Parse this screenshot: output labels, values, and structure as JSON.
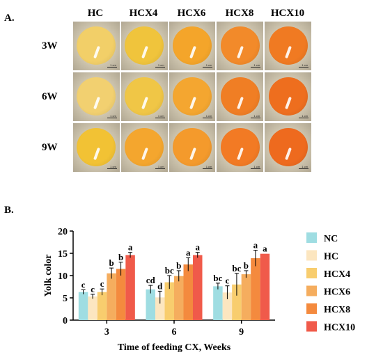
{
  "panel_a": {
    "label": "A.",
    "columns": [
      "HC",
      "HCX4",
      "HCX6",
      "HCX8",
      "HCX10"
    ],
    "rows": [
      {
        "label": "3W",
        "yolk_colors": [
          "#f2cf68",
          "#f0c43c",
          "#f4a52a",
          "#f28a2a",
          "#f07a22"
        ]
      },
      {
        "label": "6W",
        "yolk_colors": [
          "#f2d070",
          "#f0c646",
          "#f4a630",
          "#f07e24",
          "#ee6e1e"
        ]
      },
      {
        "label": "9W",
        "yolk_colors": [
          "#f2c234",
          "#f4a62e",
          "#f49a2c",
          "#f27a24",
          "#ee6a1e"
        ]
      }
    ],
    "scale_label": "1 cm"
  },
  "panel_b": {
    "label": "B."
  },
  "chart_data": {
    "type": "bar",
    "title": "",
    "xlabel": "Time of feeding CX, Weeks",
    "ylabel": "Yolk color",
    "ylim": [
      0,
      20
    ],
    "yticks": [
      0,
      5,
      10,
      15,
      20
    ],
    "categories": [
      "3",
      "6",
      "9"
    ],
    "legend_position": "right",
    "series": [
      {
        "name": "NC",
        "color": "#9fdde2",
        "values": [
          6.3,
          6.9,
          7.6
        ],
        "errors": [
          0.5,
          0.9,
          0.7
        ],
        "letters": [
          "c",
          "cd",
          "bc"
        ]
      },
      {
        "name": "HC",
        "color": "#fce6c0",
        "values": [
          5.3,
          5.1,
          6.2
        ],
        "errors": [
          0.5,
          1.4,
          1.5
        ],
        "letters": [
          "c",
          "d",
          "c"
        ]
      },
      {
        "name": "HCX4",
        "color": "#f8cd6e",
        "values": [
          6.3,
          8.5,
          8.0
        ],
        "errors": [
          0.7,
          1.5,
          2.5
        ],
        "letters": [
          "c",
          "bc",
          "bc"
        ]
      },
      {
        "name": "HCX6",
        "color": "#f5ad5e",
        "values": [
          10.5,
          9.9,
          10.3
        ],
        "errors": [
          1.2,
          1.2,
          0.8
        ],
        "letters": [
          "b",
          "b",
          "b"
        ]
      },
      {
        "name": "HCX8",
        "color": "#f48a3e",
        "values": [
          11.5,
          12.5,
          13.9
        ],
        "errors": [
          1.5,
          1.5,
          1.8
        ],
        "letters": [
          "b",
          "a",
          "a"
        ]
      },
      {
        "name": "HCX10",
        "color": "#f05a4a",
        "values": [
          14.6,
          14.6,
          14.9
        ],
        "errors": [
          0.6,
          0.6,
          0.0
        ],
        "letters": [
          "a",
          "a",
          "a"
        ]
      }
    ]
  }
}
